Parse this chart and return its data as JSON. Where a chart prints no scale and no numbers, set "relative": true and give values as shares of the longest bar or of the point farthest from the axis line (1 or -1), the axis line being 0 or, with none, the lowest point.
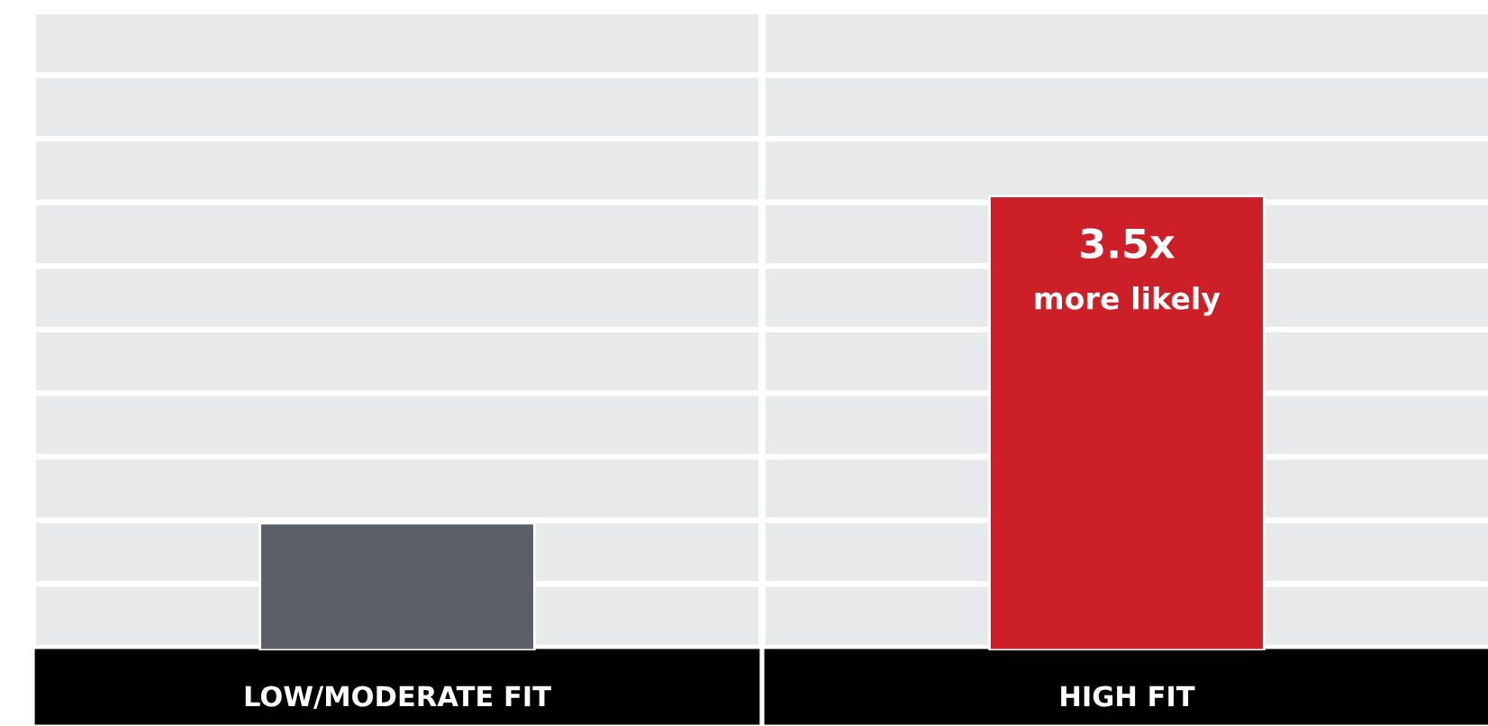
{
  "chart_data": {
    "type": "bar",
    "relative": true,
    "categories": [
      "LOW/MODERATE FIT",
      "HIGH FIT"
    ],
    "values": [
      0.28,
      1
    ],
    "colors": [
      "#5a6066",
      "#cc1f27"
    ],
    "annotations": [
      "3.5x",
      "more likely"
    ]
  }
}
